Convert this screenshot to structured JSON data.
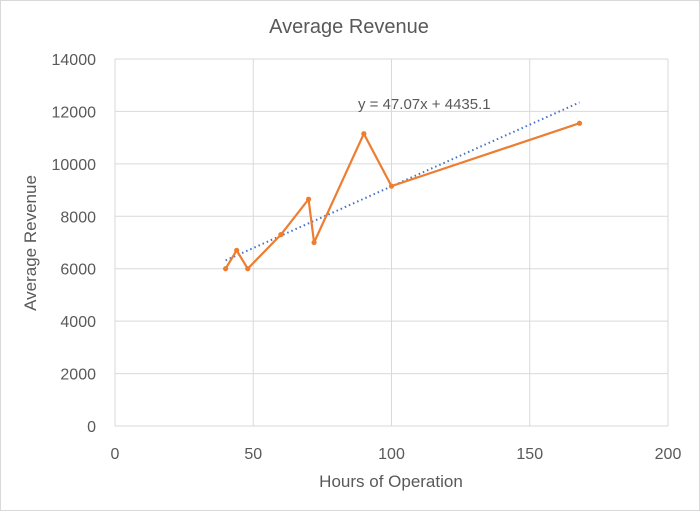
{
  "chart_data": {
    "type": "scatter",
    "title": "Average Revenue",
    "xlabel": "Hours of Operation",
    "ylabel": "Average Revenue",
    "xlim": [
      0,
      200
    ],
    "ylim": [
      0,
      14000
    ],
    "xticks": [
      0,
      50,
      100,
      150,
      200
    ],
    "yticks": [
      0,
      2000,
      4000,
      6000,
      8000,
      10000,
      12000,
      14000
    ],
    "grid": true,
    "series": [
      {
        "name": "Average Revenue",
        "color": "#ed7d31",
        "mode": "lines+markers",
        "x": [
          40,
          44,
          48,
          60,
          70,
          72,
          90,
          100,
          168
        ],
        "y": [
          6000,
          6700,
          6000,
          7300,
          8650,
          7000,
          11150,
          9150,
          11550
        ]
      }
    ],
    "trendline": {
      "type": "linear",
      "slope": 47.07,
      "intercept": 4435.1,
      "x_range": [
        40,
        168
      ],
      "color": "#4472c4",
      "label": "y = 47.07x + 4435.1"
    }
  }
}
